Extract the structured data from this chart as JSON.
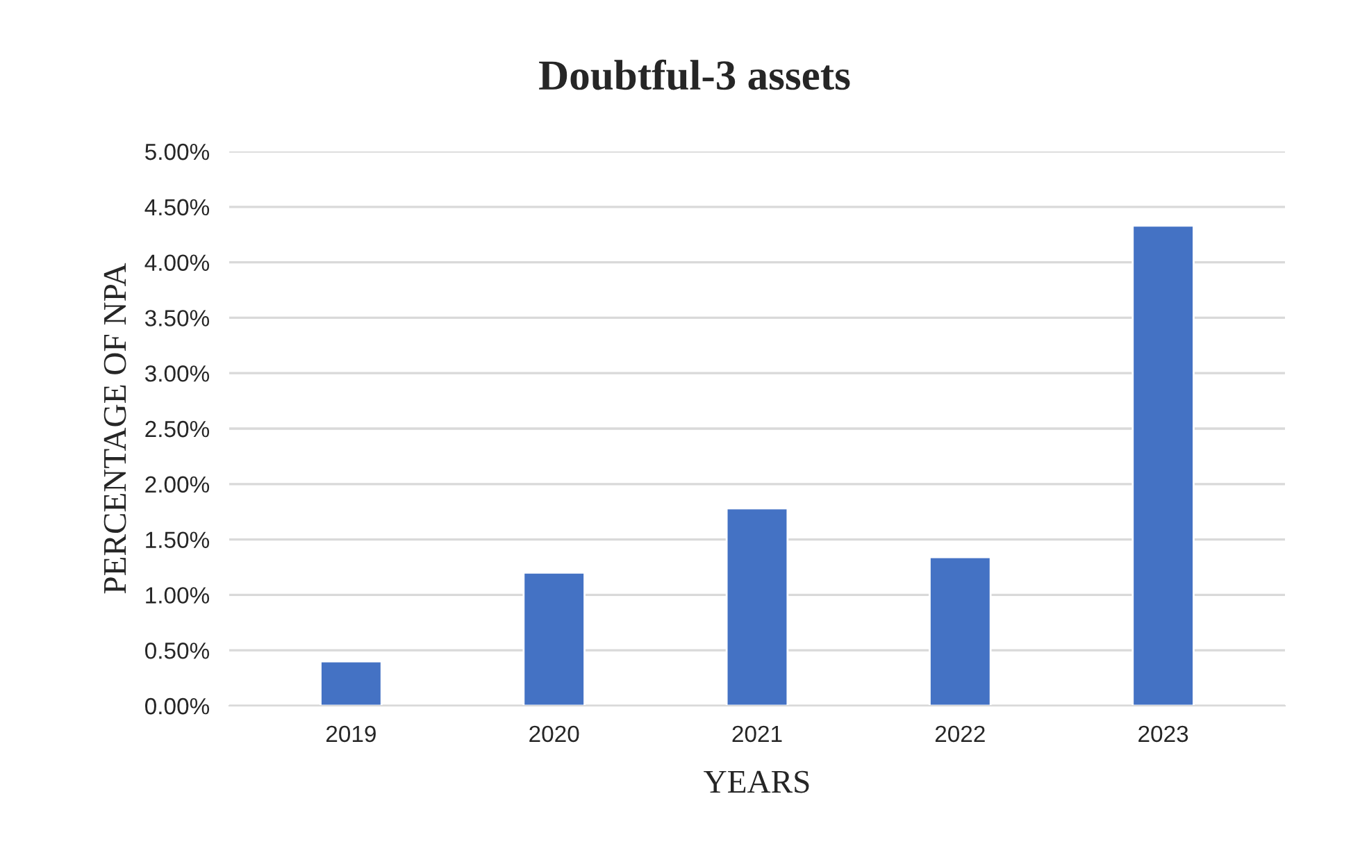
{
  "chart_data": {
    "type": "bar",
    "title": "Doubtful-3 assets",
    "xlabel": "YEARS",
    "ylabel": "PERCENTAGE OF NPA",
    "categories": [
      "2019",
      "2020",
      "2021",
      "2022",
      "2023"
    ],
    "values": [
      0.4,
      1.2,
      1.78,
      1.34,
      4.33
    ],
    "color": "#4472c4",
    "ylim": [
      0,
      5
    ],
    "yticks": [
      {
        "value": 0,
        "label": "0.00%"
      },
      {
        "value": 0.5,
        "label": "0.50%"
      },
      {
        "value": 1,
        "label": "1.00%"
      },
      {
        "value": 1.5,
        "label": "1.50%"
      },
      {
        "value": 2,
        "label": "2.00%"
      },
      {
        "value": 2.5,
        "label": "2.50%"
      },
      {
        "value": 3,
        "label": "3.00%"
      },
      {
        "value": 3.5,
        "label": "3.50%"
      },
      {
        "value": 4,
        "label": "4.00%"
      },
      {
        "value": 4.5,
        "label": "4.50%"
      },
      {
        "value": 5,
        "label": "5.00%"
      }
    ],
    "grid": "y",
    "legend": false
  }
}
